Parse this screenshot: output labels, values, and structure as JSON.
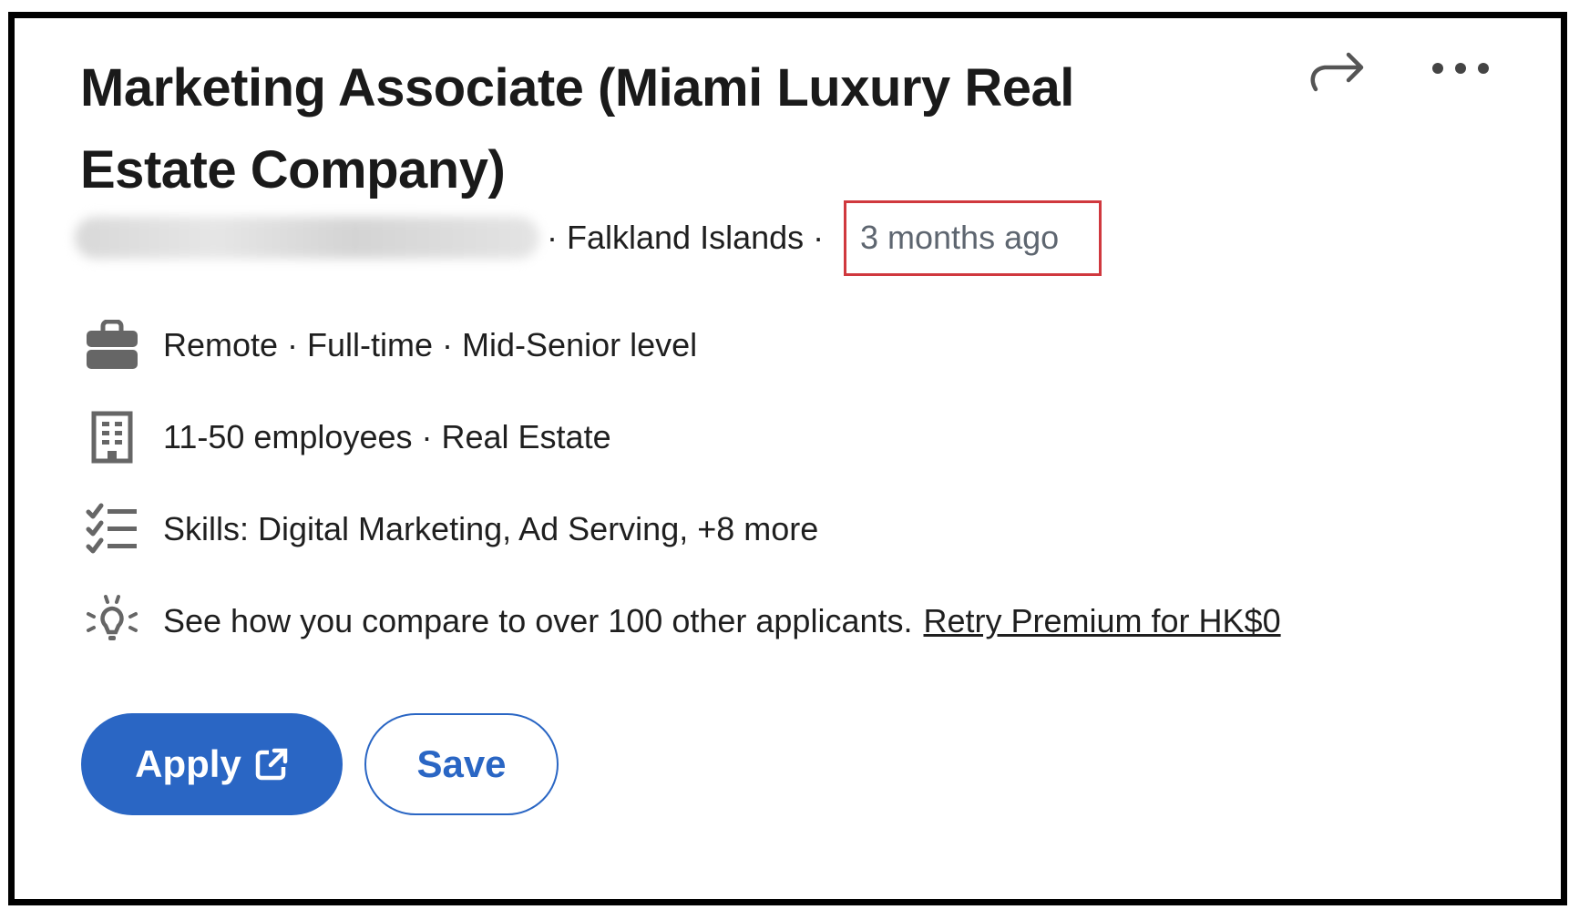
{
  "job": {
    "title": "Marketing Associate (Miami Luxury Real Estate Company)",
    "location": "· Falkland Islands ·",
    "posted": "3 months ago"
  },
  "details": [
    {
      "icon": "briefcase-icon",
      "text": "Remote · Full-time · Mid-Senior level"
    },
    {
      "icon": "building-icon",
      "text": "11-50 employees · Real Estate"
    },
    {
      "icon": "checklist-icon",
      "text": "Skills: Digital Marketing, Ad Serving, +8 more"
    },
    {
      "icon": "lightbulb-icon",
      "text": "See how you compare to over 100 other applicants.",
      "link": "Retry Premium for HK$0"
    }
  ],
  "actions": {
    "apply_label": "Apply",
    "save_label": "Save"
  },
  "colors": {
    "primary": "#2a66c4",
    "highlight_box": "#d0383e"
  }
}
